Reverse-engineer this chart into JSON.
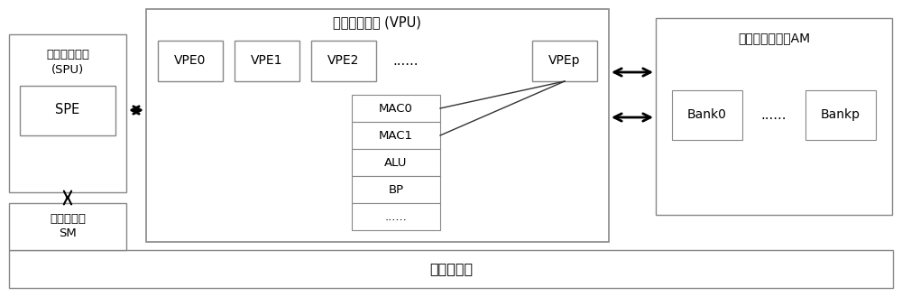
{
  "bg_color": "#ffffff",
  "border_color": "#666666",
  "text_color": "#000000",
  "vpu_title": "向量处理部件 (VPU)",
  "bottom_label": "片外存储器",
  "spu_label1": "标量处理部件",
  "spu_label2": "(SPU)",
  "spe_label": "SPE",
  "sm_label1": "标量存储器",
  "sm_label2": "SM",
  "vpe0": "VPE0",
  "vpe1": "VPE1",
  "vpe2": "VPE2",
  "vpe_dots": "......",
  "vpep": "VPEp",
  "mac0": "MAC0",
  "mac1": "MAC1",
  "alu": "ALU",
  "bp": "BP",
  "stack_dots": "......",
  "am_label": "向量阵列存储器AM",
  "bank0": "Bank0",
  "bank_dots": "......",
  "bankp": "Bankp",
  "font_size": 10.5,
  "small_font_size": 9.5
}
